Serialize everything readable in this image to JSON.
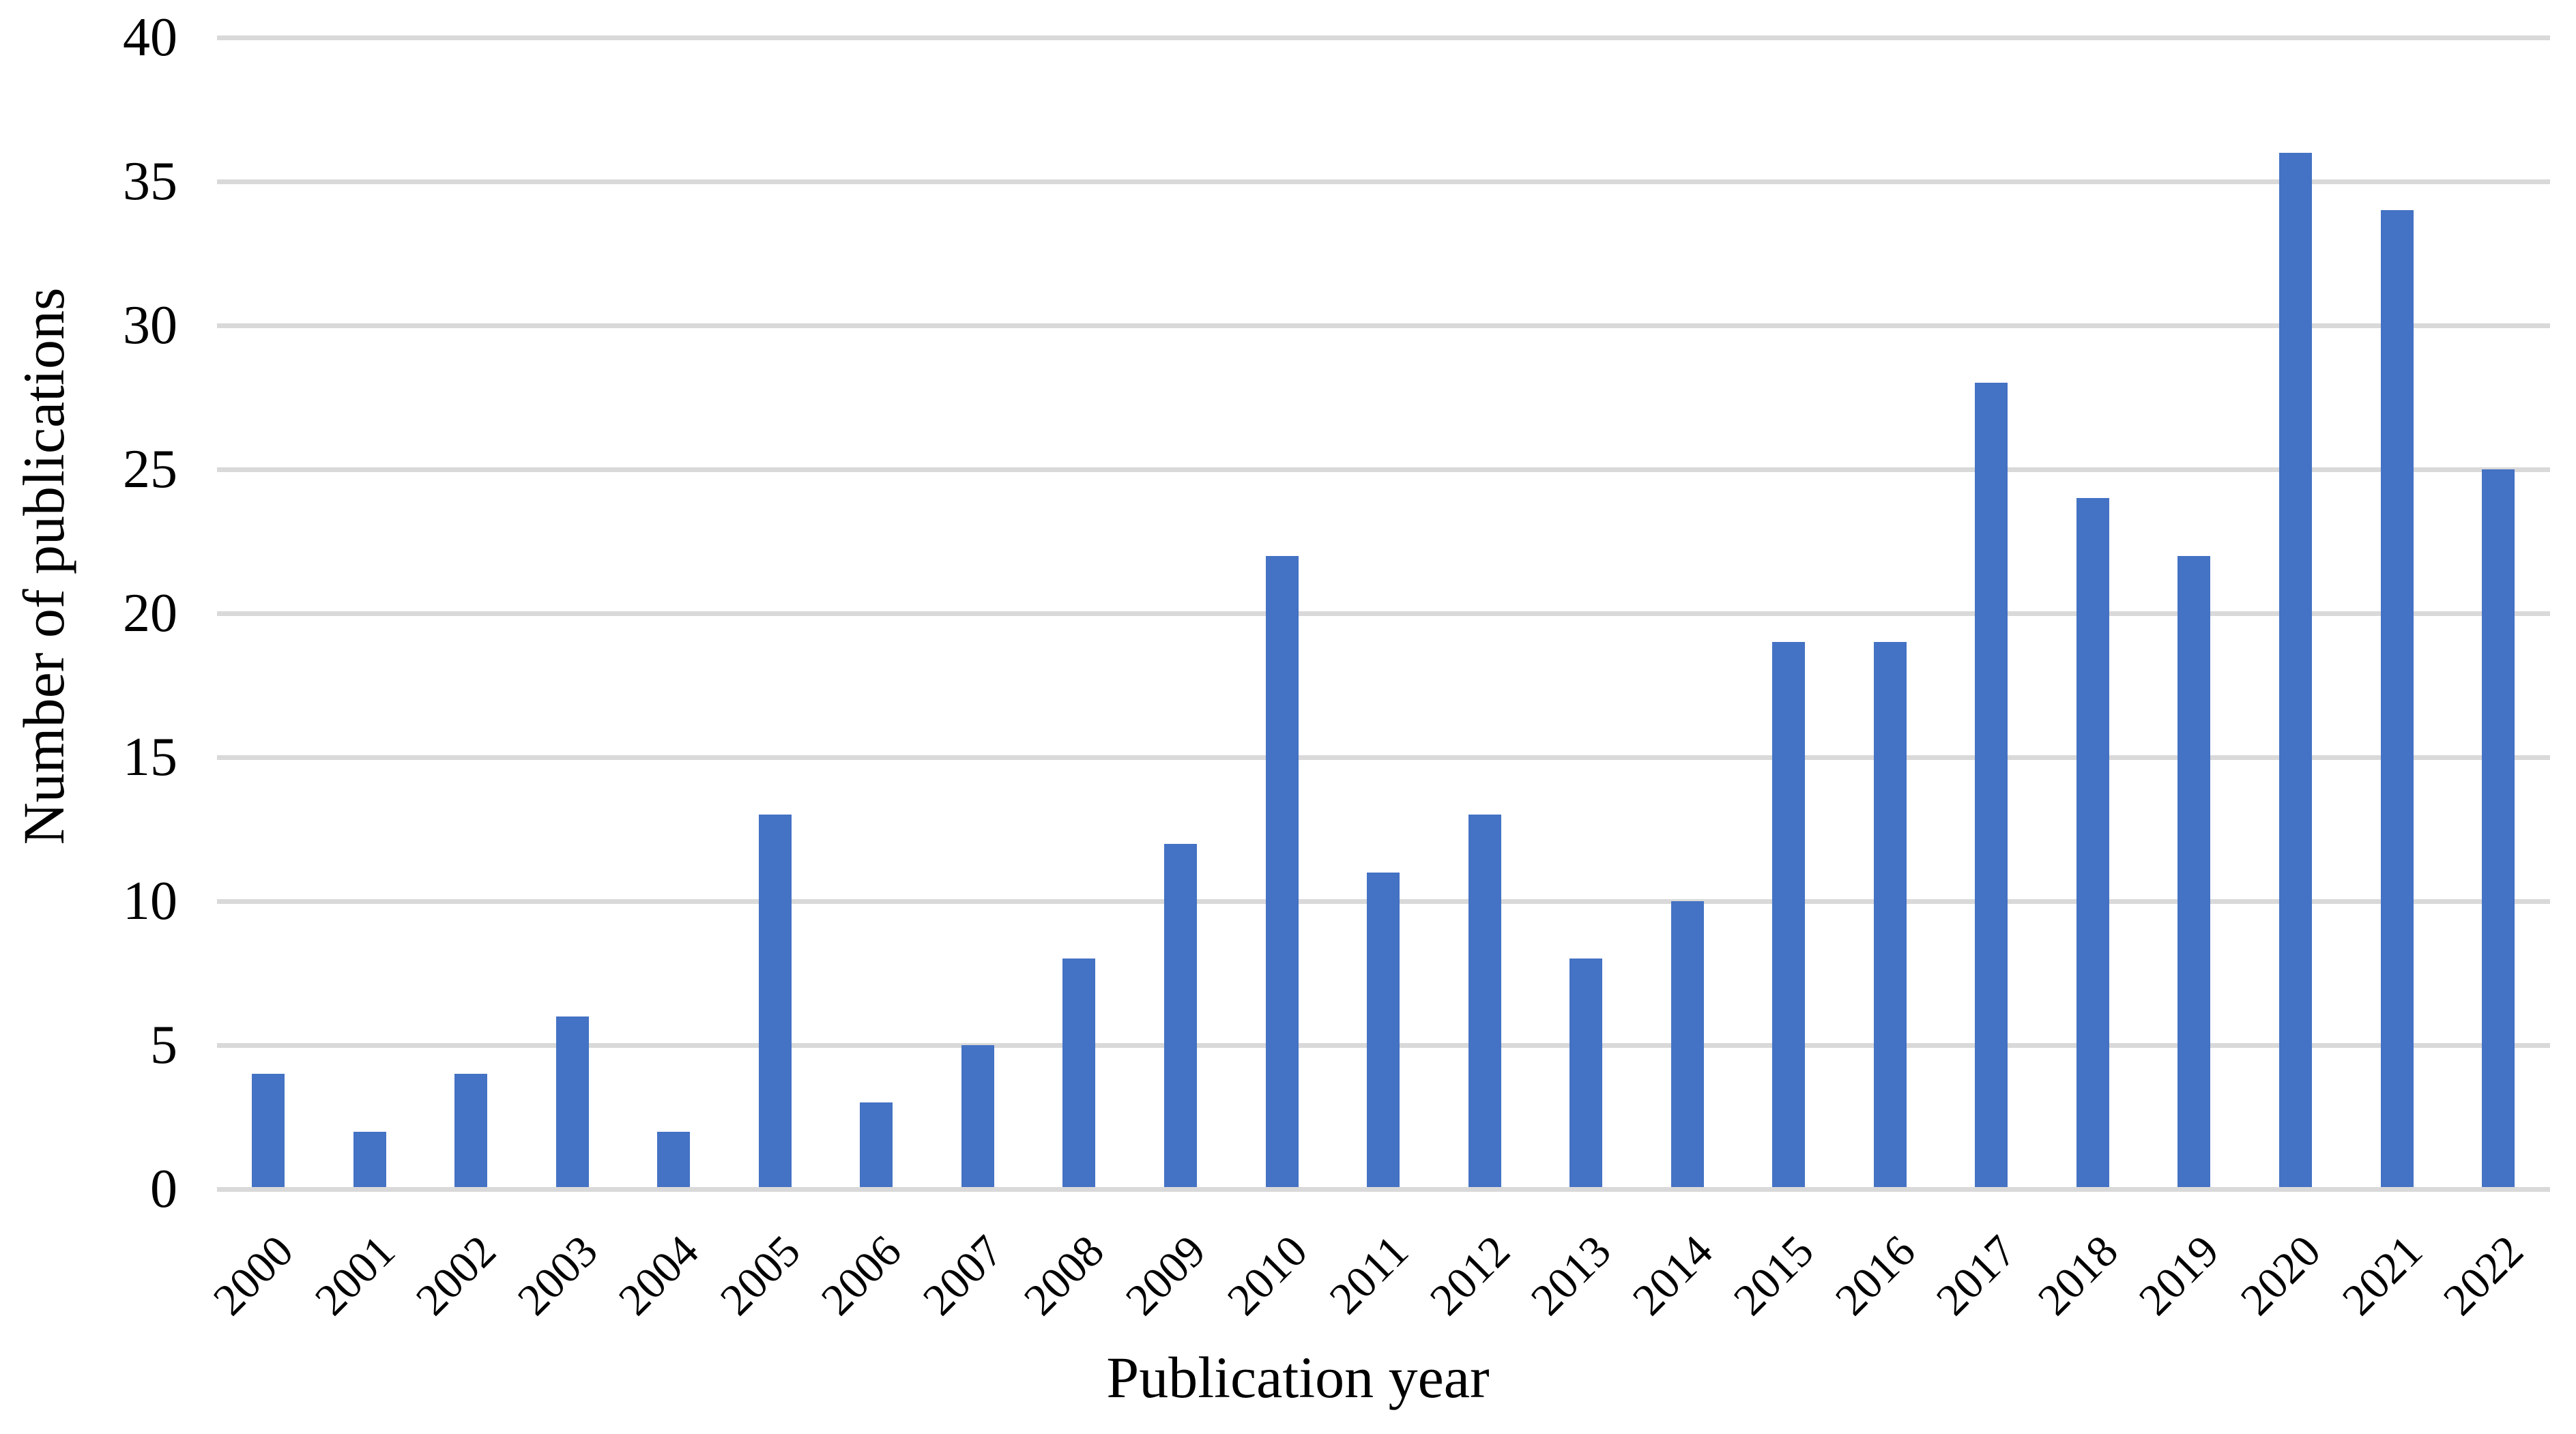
{
  "chart_data": {
    "type": "bar",
    "title": "",
    "xlabel": "Publication year",
    "ylabel": "Number of publications",
    "categories": [
      "2000",
      "2001",
      "2002",
      "2003",
      "2004",
      "2005",
      "2006",
      "2007",
      "2008",
      "2009",
      "2010",
      "2011",
      "2012",
      "2013",
      "2014",
      "2015",
      "2016",
      "2017",
      "2018",
      "2019",
      "2020",
      "2021",
      "2022"
    ],
    "values": [
      4,
      2,
      4,
      6,
      2,
      13,
      3,
      5,
      8,
      12,
      22,
      11,
      13,
      8,
      10,
      19,
      19,
      28,
      24,
      22,
      36,
      34,
      25
    ],
    "yticks": [
      0,
      5,
      10,
      15,
      20,
      25,
      30,
      35,
      40
    ],
    "ylim": [
      0,
      40
    ],
    "grid": "horizontal",
    "legend": "none",
    "bar_color": "#4472C4",
    "gridline_color": "#D9D9D9",
    "text_color": "#000000",
    "background_color": "#FFFFFF"
  }
}
